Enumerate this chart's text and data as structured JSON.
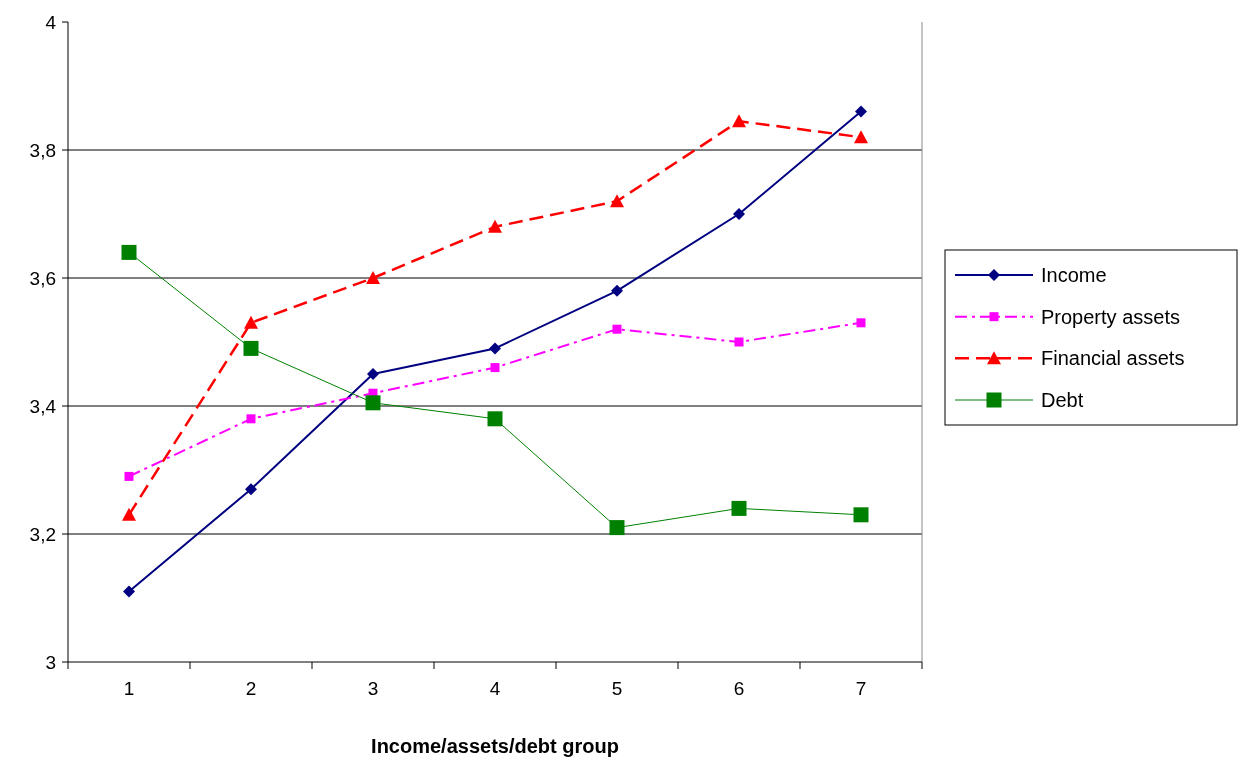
{
  "chart_data": {
    "type": "line",
    "xlabel": "Income/assets/debt group",
    "categories": [
      "1",
      "2",
      "3",
      "4",
      "5",
      "6",
      "7"
    ],
    "ylim": [
      3,
      4
    ],
    "yticks": [
      {
        "value": 3,
        "label": "3"
      },
      {
        "value": 3.2,
        "label": "3,2"
      },
      {
        "value": 3.4,
        "label": "3,4"
      },
      {
        "value": 3.6,
        "label": "3,6"
      },
      {
        "value": 3.8,
        "label": "3,8"
      },
      {
        "value": 4,
        "label": "4"
      }
    ],
    "grid": "y",
    "legend": "right",
    "series": [
      {
        "name": "Income",
        "color": "#000080",
        "marker": "diamond",
        "line_style": "solid",
        "values": [
          3.11,
          3.27,
          3.45,
          3.49,
          3.58,
          3.7,
          3.86
        ]
      },
      {
        "name": "Property assets",
        "color": "#ff00ff",
        "marker": "square",
        "line_style": "dashdot",
        "values": [
          3.29,
          3.38,
          3.42,
          3.46,
          3.52,
          3.5,
          3.53
        ]
      },
      {
        "name": "Financial assets",
        "color": "#ff0000",
        "marker": "triangle",
        "line_style": "dashed",
        "values": [
          3.23,
          3.53,
          3.6,
          3.68,
          3.72,
          3.845,
          3.82
        ]
      },
      {
        "name": "Debt",
        "color": "#008000",
        "marker": "square",
        "line_style": "solid",
        "values": [
          3.64,
          3.49,
          3.405,
          3.38,
          3.21,
          3.24,
          3.23
        ]
      }
    ]
  }
}
